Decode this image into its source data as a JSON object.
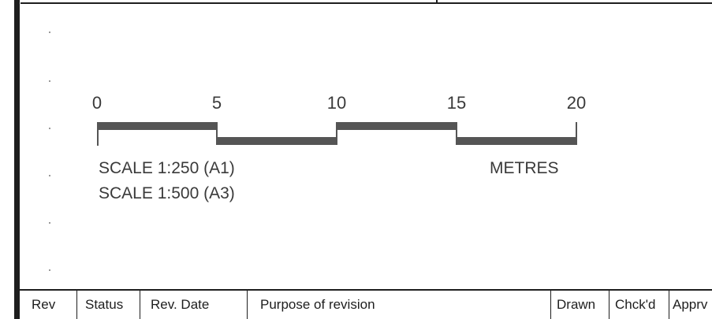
{
  "scale_bar": {
    "ticks": [
      "0",
      "5",
      "10",
      "15",
      "20"
    ],
    "scale_a1": "SCALE 1:250 (A1)",
    "scale_a3": "SCALE 1:500 (A3)",
    "units": "METRES"
  },
  "revision_table": {
    "headers": [
      "Rev",
      "Status",
      "Rev. Date",
      "Purpose of revision",
      "Drawn",
      "Chck'd",
      "Apprv"
    ]
  }
}
